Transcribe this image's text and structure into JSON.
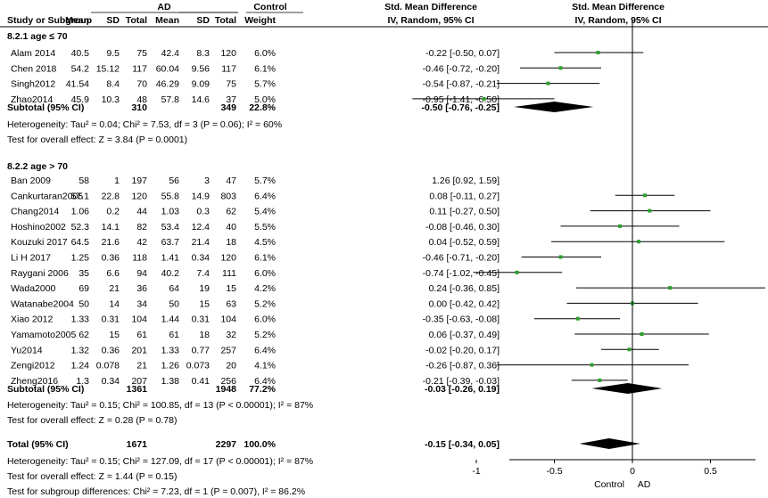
{
  "chart_data": {
    "type": "forest",
    "headers": {
      "group_ad": "AD",
      "group_control": "Control",
      "col_study": "Study or Subgroup",
      "col_mean": "Mean",
      "col_sd": "SD",
      "col_total": "Total",
      "col_weight": "Weight",
      "col_smd_title": "Std. Mean Difference",
      "col_smd_method": "IV, Random, 95% CI",
      "plot_title": "Std. Mean Difference",
      "plot_method": "IV, Random, 95% CI"
    },
    "xaxis": {
      "range": [
        -1.5,
        1.5
      ],
      "ticks": [
        -1,
        -0.5,
        0,
        0.5,
        1
      ],
      "tick_labels": [
        "-1",
        "-0.5",
        "0",
        "0.5",
        "1"
      ],
      "label_left": "Control",
      "label_right": "AD"
    },
    "subgroups": [
      {
        "title": "8.2.1 age ≤ 70",
        "studies": [
          {
            "name": "Alam 2014",
            "ad_mean": "40.5",
            "ad_sd": "9.5",
            "ad_total": "75",
            "c_mean": "42.4",
            "c_sd": "8.3",
            "c_total": "120",
            "weight": "6.0%",
            "ci_text": "-0.22 [-0.50, 0.07]",
            "est": -0.22,
            "lo": -0.5,
            "hi": 0.07
          },
          {
            "name": "Chen 2018",
            "ad_mean": "54.2",
            "ad_sd": "15.12",
            "ad_total": "117",
            "c_mean": "60.04",
            "c_sd": "9.56",
            "c_total": "117",
            "weight": "6.1%",
            "ci_text": "-0.46 [-0.72, -0.20]",
            "est": -0.46,
            "lo": -0.72,
            "hi": -0.2
          },
          {
            "name": "Singh2012",
            "ad_mean": "41.54",
            "ad_sd": "8.4",
            "ad_total": "70",
            "c_mean": "46.29",
            "c_sd": "9.09",
            "c_total": "75",
            "weight": "5.7%",
            "ci_text": "-0.54 [-0.87, -0.21]",
            "est": -0.54,
            "lo": -0.87,
            "hi": -0.21
          },
          {
            "name": "Zhao2014",
            "ad_mean": "45.9",
            "ad_sd": "10.3",
            "ad_total": "48",
            "c_mean": "57.8",
            "c_sd": "14.6",
            "c_total": "37",
            "weight": "5.0%",
            "ci_text": "-0.95 [-1.41, -0.50]",
            "est": -0.95,
            "lo": -1.41,
            "hi": -0.5
          }
        ],
        "subtotal": {
          "label": "Subtotal (95% CI)",
          "ad_total": "310",
          "c_total": "349",
          "weight": "22.8%",
          "ci_text": "-0.50 [-0.76, -0.25]",
          "est": -0.5,
          "lo": -0.76,
          "hi": -0.25
        },
        "heterogeneity": "Heterogeneity: Tau² = 0.04; Chi² = 7.53, df = 3 (P = 0.06); I² = 60%",
        "overall_test": "Test for overall effect: Z = 3.84 (P = 0.0001)"
      },
      {
        "title": "8.2.2 age > 70",
        "studies": [
          {
            "name": "Ban 2009",
            "ad_mean": "58",
            "ad_sd": "1",
            "ad_total": "197",
            "c_mean": "56",
            "c_sd": "3",
            "c_total": "47",
            "weight": "5.7%",
            "ci_text": "1.26 [0.92, 1.59]",
            "est": 1.26,
            "lo": 0.92,
            "hi": 1.59
          },
          {
            "name": "Cankurtaran2005",
            "ad_mean": "57.1",
            "ad_sd": "22.8",
            "ad_total": "120",
            "c_mean": "55.8",
            "c_sd": "14.9",
            "c_total": "803",
            "weight": "6.4%",
            "ci_text": "0.08 [-0.11, 0.27]",
            "est": 0.08,
            "lo": -0.11,
            "hi": 0.27
          },
          {
            "name": "Chang2014",
            "ad_mean": "1.06",
            "ad_sd": "0.2",
            "ad_total": "44",
            "c_mean": "1.03",
            "c_sd": "0.3",
            "c_total": "62",
            "weight": "5.4%",
            "ci_text": "0.11 [-0.27, 0.50]",
            "est": 0.11,
            "lo": -0.27,
            "hi": 0.5
          },
          {
            "name": "Hoshino2002",
            "ad_mean": "52.3",
            "ad_sd": "14.1",
            "ad_total": "82",
            "c_mean": "53.4",
            "c_sd": "12.4",
            "c_total": "40",
            "weight": "5.5%",
            "ci_text": "-0.08 [-0.46, 0.30]",
            "est": -0.08,
            "lo": -0.46,
            "hi": 0.3
          },
          {
            "name": "Kouzuki 2017",
            "ad_mean": "64.5",
            "ad_sd": "21.6",
            "ad_total": "42",
            "c_mean": "63.7",
            "c_sd": "21.4",
            "c_total": "18",
            "weight": "4.5%",
            "ci_text": "0.04 [-0.52, 0.59]",
            "est": 0.04,
            "lo": -0.52,
            "hi": 0.59
          },
          {
            "name": "Li H 2017",
            "ad_mean": "1.25",
            "ad_sd": "0.36",
            "ad_total": "118",
            "c_mean": "1.41",
            "c_sd": "0.34",
            "c_total": "120",
            "weight": "6.1%",
            "ci_text": "-0.46 [-0.71, -0.20]",
            "est": -0.46,
            "lo": -0.71,
            "hi": -0.2
          },
          {
            "name": "Raygani 2006",
            "ad_mean": "35",
            "ad_sd": "6.6",
            "ad_total": "94",
            "c_mean": "40.2",
            "c_sd": "7.4",
            "c_total": "111",
            "weight": "6.0%",
            "ci_text": "-0.74 [-1.02, -0.45]",
            "est": -0.74,
            "lo": -1.02,
            "hi": -0.45
          },
          {
            "name": "Wada2000",
            "ad_mean": "69",
            "ad_sd": "21",
            "ad_total": "36",
            "c_mean": "64",
            "c_sd": "19",
            "c_total": "15",
            "weight": "4.2%",
            "ci_text": "0.24 [-0.36, 0.85]",
            "est": 0.24,
            "lo": -0.36,
            "hi": 0.85
          },
          {
            "name": "Watanabe2004",
            "ad_mean": "50",
            "ad_sd": "14",
            "ad_total": "34",
            "c_mean": "50",
            "c_sd": "15",
            "c_total": "63",
            "weight": "5.2%",
            "ci_text": "0.00 [-0.42, 0.42]",
            "est": 0.0,
            "lo": -0.42,
            "hi": 0.42
          },
          {
            "name": "Xiao 2012",
            "ad_mean": "1.33",
            "ad_sd": "0.31",
            "ad_total": "104",
            "c_mean": "1.44",
            "c_sd": "0.31",
            "c_total": "104",
            "weight": "6.0%",
            "ci_text": "-0.35 [-0.63, -0.08]",
            "est": -0.35,
            "lo": -0.63,
            "hi": -0.08
          },
          {
            "name": "Yamamoto2005",
            "ad_mean": "62",
            "ad_sd": "15",
            "ad_total": "61",
            "c_mean": "61",
            "c_sd": "18",
            "c_total": "32",
            "weight": "5.2%",
            "ci_text": "0.06 [-0.37, 0.49]",
            "est": 0.06,
            "lo": -0.37,
            "hi": 0.49
          },
          {
            "name": "Yu2014",
            "ad_mean": "1.32",
            "ad_sd": "0.36",
            "ad_total": "201",
            "c_mean": "1.33",
            "c_sd": "0.77",
            "c_total": "257",
            "weight": "6.4%",
            "ci_text": "-0.02 [-0.20, 0.17]",
            "est": -0.02,
            "lo": -0.2,
            "hi": 0.17
          },
          {
            "name": "Zengi2012",
            "ad_mean": "1.24",
            "ad_sd": "0.078",
            "ad_total": "21",
            "c_mean": "1.26",
            "c_sd": "0.073",
            "c_total": "20",
            "weight": "4.1%",
            "ci_text": "-0.26 [-0.87, 0.36]",
            "est": -0.26,
            "lo": -0.87,
            "hi": 0.36
          },
          {
            "name": "Zheng2016",
            "ad_mean": "1.3",
            "ad_sd": "0.34",
            "ad_total": "207",
            "c_mean": "1.38",
            "c_sd": "0.41",
            "c_total": "256",
            "weight": "6.4%",
            "ci_text": "-0.21 [-0.39, -0.03]",
            "est": -0.21,
            "lo": -0.39,
            "hi": -0.03
          }
        ],
        "subtotal": {
          "label": "Subtotal (95% CI)",
          "ad_total": "1361",
          "c_total": "1948",
          "weight": "77.2%",
          "ci_text": "-0.03 [-0.26, 0.19]",
          "est": -0.03,
          "lo": -0.26,
          "hi": 0.19
        },
        "heterogeneity": "Heterogeneity: Tau² = 0.15; Chi² = 100.85, df = 13 (P < 0.00001); I² = 87%",
        "overall_test": "Test for overall effect: Z = 0.28 (P = 0.78)"
      }
    ],
    "total": {
      "label": "Total (95% CI)",
      "ad_total": "1671",
      "c_total": "2297",
      "weight": "100.0%",
      "ci_text": "-0.15 [-0.34, 0.05]",
      "est": -0.15,
      "lo": -0.34,
      "hi": 0.05
    },
    "total_heterogeneity": "Heterogeneity: Tau² = 0.15; Chi² = 127.09, df = 17 (P < 0.00001); I² = 87%",
    "total_overall_test": "Test for overall effect: Z = 1.44 (P = 0.15)",
    "subgroup_difference_test": "Test for subgroup differences: Chi² = 7.23, df = 1 (P = 0.007), I² = 86.2%",
    "colors": {
      "marker": "#2ca02c",
      "line": "#000000",
      "diamond": "#000000"
    }
  }
}
